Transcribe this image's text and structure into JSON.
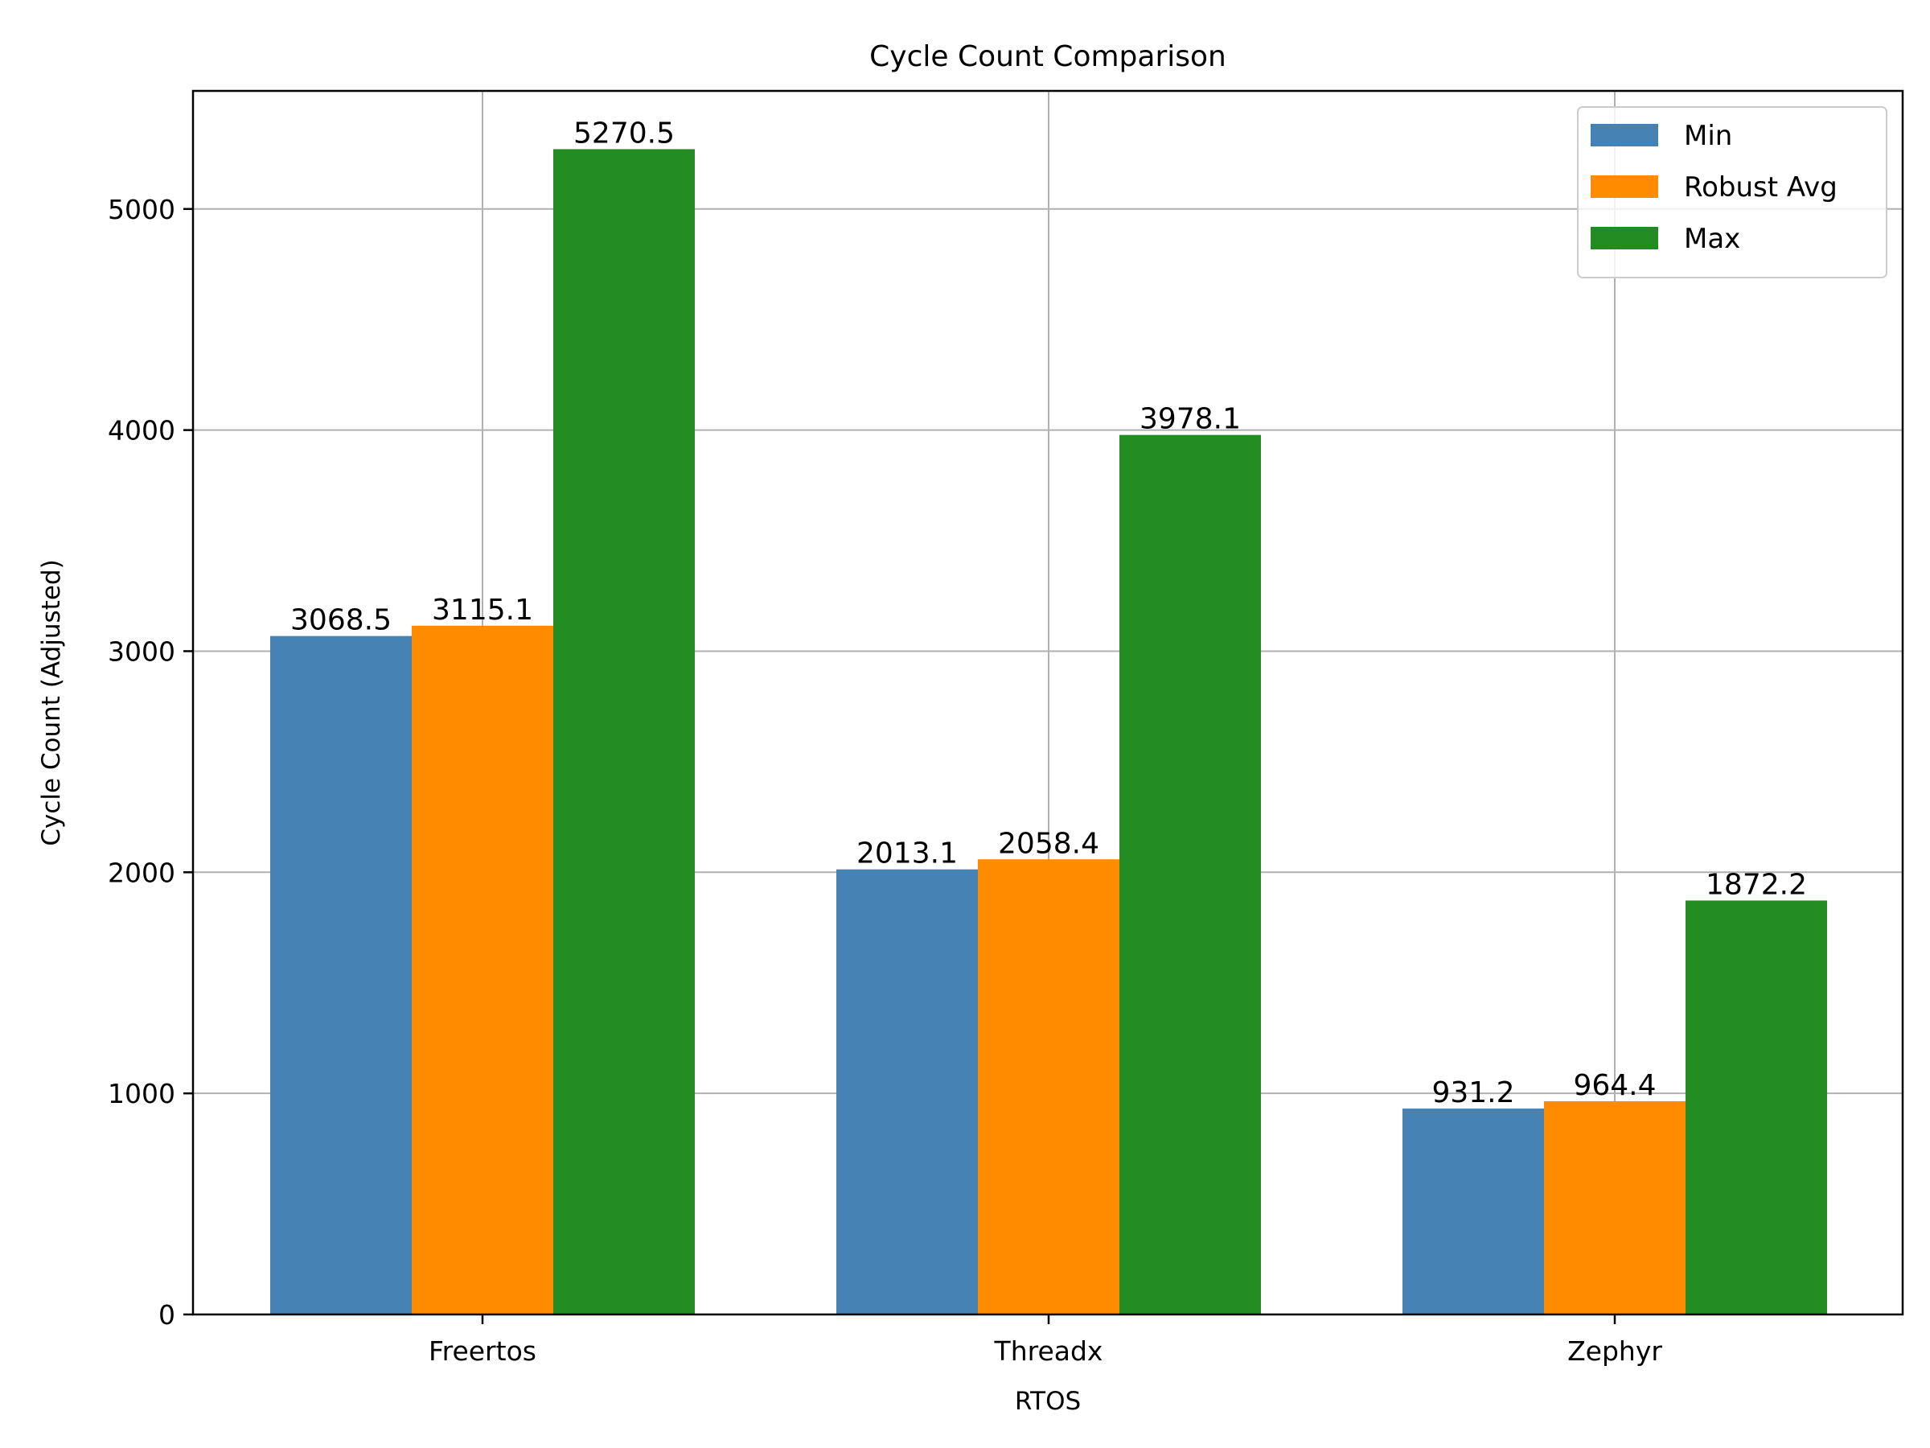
{
  "chart_data": {
    "type": "bar",
    "title": "Cycle Count Comparison",
    "xlabel": "RTOS",
    "ylabel": "Cycle Count (Adjusted)",
    "categories": [
      "Freertos",
      "Threadx",
      "Zephyr"
    ],
    "series": [
      {
        "name": "Min",
        "color": "#4682b4",
        "values": [
          3068.5,
          2013.1,
          931.2
        ],
        "labels": [
          "3068.5",
          "2013.1",
          "931.2"
        ]
      },
      {
        "name": "Robust Avg",
        "color": "#ff8c00",
        "values": [
          3115.1,
          2058.4,
          964.4
        ],
        "labels": [
          "3115.1",
          "2058.4",
          "964.4"
        ]
      },
      {
        "name": "Max",
        "color": "#228b22",
        "values": [
          5270.5,
          3978.1,
          1872.2
        ],
        "labels": [
          "5270.5",
          "3978.1",
          "1872.2"
        ]
      }
    ],
    "ylim": [
      0,
      5534
    ],
    "yticks": [
      0,
      1000,
      2000,
      3000,
      4000,
      5000
    ],
    "ytick_labels": [
      "0",
      "1000",
      "2000",
      "3000",
      "4000",
      "5000"
    ],
    "grid": true,
    "legend_position": "top-right"
  }
}
